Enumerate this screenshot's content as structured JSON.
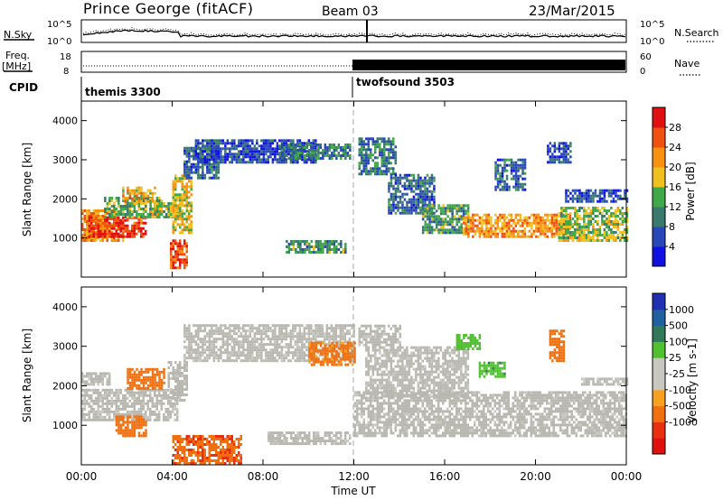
{
  "header": {
    "title": "Prince George (fitACF)",
    "beam": "Beam 03",
    "date": "23/Mar/2015"
  },
  "noise_panel": {
    "left_label": "N.Sky",
    "right_label": "N.Search",
    "left_ticks": [
      "10^5",
      "10^0"
    ],
    "right_ticks": [
      "10^5",
      "10^0"
    ]
  },
  "freq_panel": {
    "left_label_1": "Freq.",
    "left_label_2": "[MHz]",
    "left_ticks": [
      "18",
      "8"
    ],
    "right_label": "Nave",
    "right_ticks": [
      "60",
      "0"
    ]
  },
  "cpid": {
    "label": "CPID",
    "modes": [
      {
        "name": "themis 3300",
        "start_hour": 0.0
      },
      {
        "name": "twofsound 3503",
        "start_hour": 12.0
      }
    ]
  },
  "x_axis": {
    "label": "Time UT",
    "ticks": [
      "00:00",
      "04:00",
      "08:00",
      "12:00",
      "16:00",
      "20:00",
      "00:00"
    ],
    "range_hours": [
      0,
      24
    ]
  },
  "colors": {
    "power_scale": [
      "#1010e0",
      "#2848b8",
      "#3a7a6c",
      "#40a848",
      "#f0c020",
      "#f89010",
      "#f05010",
      "#e01010"
    ],
    "velocity_scale": [
      "#2030b0",
      "#2060a0",
      "#307858",
      "#50c030",
      "#c8c8c0",
      "#c8c8c0",
      "#f8a020",
      "#f07010",
      "#e83010",
      "#e01010"
    ],
    "ground_scatter": "#b8b8b0"
  },
  "chart_data": [
    {
      "type": "heatmap",
      "name": "Power",
      "ylabel": "Slant Range [km]",
      "xlabel": "",
      "ylim": [
        0,
        4500
      ],
      "yticks": [
        1000,
        2000,
        3000,
        4000
      ],
      "colorbar_label": "Power [dB]",
      "colorbar_ticks": [
        "4",
        "8",
        "12",
        "16",
        "20",
        "24",
        "28"
      ],
      "colorbar_range": [
        0,
        32
      ],
      "regions": [
        {
          "t0": 0.0,
          "t1": 1.8,
          "r0": 900,
          "r1": 1700,
          "dB": 22
        },
        {
          "t0": 0.3,
          "t1": 2.8,
          "r0": 1000,
          "r1": 1500,
          "dB": 28
        },
        {
          "t0": 1.0,
          "t1": 3.5,
          "r0": 1500,
          "r1": 2000,
          "dB": 14
        },
        {
          "t0": 1.8,
          "t1": 3.2,
          "r0": 1900,
          "r1": 2300,
          "dB": 20
        },
        {
          "t0": 3.0,
          "t1": 4.3,
          "r0": 1500,
          "r1": 1900,
          "dB": 16
        },
        {
          "t0": 4.0,
          "t1": 4.8,
          "r0": 1100,
          "r1": 2600,
          "dB": 18
        },
        {
          "t0": 3.9,
          "t1": 4.6,
          "r0": 200,
          "r1": 900,
          "dB": 26
        },
        {
          "t0": 4.5,
          "t1": 6.0,
          "r0": 2500,
          "r1": 3300,
          "dB": 8
        },
        {
          "t0": 5.0,
          "t1": 10.3,
          "r0": 2900,
          "r1": 3500,
          "dB": 6
        },
        {
          "t0": 8.7,
          "t1": 11.8,
          "r0": 3000,
          "r1": 3400,
          "dB": 10
        },
        {
          "t0": 9.0,
          "t1": 11.6,
          "r0": 600,
          "r1": 900,
          "dB": 12
        },
        {
          "t0": 12.2,
          "t1": 13.8,
          "r0": 2600,
          "r1": 3500,
          "dB": 10
        },
        {
          "t0": 13.5,
          "t1": 15.5,
          "r0": 1600,
          "r1": 2600,
          "dB": 8
        },
        {
          "t0": 15.0,
          "t1": 17.0,
          "r0": 1100,
          "r1": 1800,
          "dB": 12
        },
        {
          "t0": 16.8,
          "t1": 21.5,
          "r0": 1000,
          "r1": 1600,
          "dB": 22
        },
        {
          "t0": 18.2,
          "t1": 19.5,
          "r0": 2200,
          "r1": 3000,
          "dB": 8
        },
        {
          "t0": 21.0,
          "t1": 24.0,
          "r0": 900,
          "r1": 1800,
          "dB": 16
        },
        {
          "t0": 20.5,
          "t1": 21.5,
          "r0": 2900,
          "r1": 3400,
          "dB": 6
        },
        {
          "t0": 21.3,
          "t1": 24.0,
          "r0": 1900,
          "r1": 2200,
          "dB": 6
        }
      ]
    },
    {
      "type": "heatmap",
      "name": "Velocity",
      "ylabel": "Slant Range [km]",
      "xlabel": "Time UT",
      "ylim": [
        0,
        4500
      ],
      "yticks": [
        1000,
        2000,
        3000,
        4000
      ],
      "colorbar_label": "Velocity [m s-1]",
      "colorbar_ticks": [
        "1000",
        "500",
        "100",
        "25",
        "-25",
        "-100",
        "-500",
        "-1000"
      ],
      "regions": [
        {
          "t0": 0.0,
          "t1": 4.2,
          "r0": 1100,
          "r1": 1900,
          "v": 0
        },
        {
          "t0": 0.0,
          "t1": 1.2,
          "r0": 2000,
          "r1": 2300,
          "v": -10
        },
        {
          "t0": 1.5,
          "t1": 2.8,
          "r0": 700,
          "r1": 1200,
          "v": -300
        },
        {
          "t0": 2.0,
          "t1": 3.6,
          "r0": 1900,
          "r1": 2400,
          "v": -200
        },
        {
          "t0": 3.8,
          "t1": 4.6,
          "r0": 1600,
          "r1": 2600,
          "v": 0
        },
        {
          "t0": 4.0,
          "t1": 7.0,
          "r0": 0,
          "r1": 700,
          "v": -400
        },
        {
          "t0": 4.5,
          "t1": 12.0,
          "r0": 2600,
          "r1": 3500,
          "v": 0
        },
        {
          "t0": 8.2,
          "t1": 11.8,
          "r0": 500,
          "r1": 800,
          "v": 0
        },
        {
          "t0": 10.0,
          "t1": 12.0,
          "r0": 2500,
          "r1": 3100,
          "v": -150
        },
        {
          "t0": 12.0,
          "t1": 24.0,
          "r0": 700,
          "r1": 1800,
          "v": 0
        },
        {
          "t0": 12.5,
          "t1": 17.0,
          "r0": 1700,
          "r1": 3000,
          "v": 0
        },
        {
          "t0": 12.2,
          "t1": 14.0,
          "r0": 3000,
          "r1": 3500,
          "v": 0
        },
        {
          "t0": 16.5,
          "t1": 17.5,
          "r0": 2900,
          "r1": 3300,
          "v": 60
        },
        {
          "t0": 17.5,
          "t1": 18.6,
          "r0": 2200,
          "r1": 2600,
          "v": 70
        },
        {
          "t0": 20.6,
          "t1": 21.2,
          "r0": 2600,
          "r1": 3400,
          "v": -300
        },
        {
          "t0": 22.0,
          "t1": 24.0,
          "r0": 2000,
          "r1": 2200,
          "v": 0
        }
      ]
    }
  ]
}
